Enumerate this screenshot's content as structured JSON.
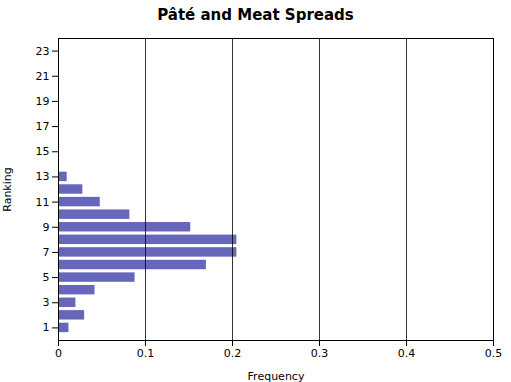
{
  "chart_data": {
    "type": "bar",
    "orientation": "horizontal",
    "title": "Pâté and Meat Spreads",
    "xlabel": "Frequency",
    "ylabel": "Ranking",
    "categories": [
      1,
      2,
      3,
      4,
      5,
      6,
      7,
      8,
      9,
      10,
      11,
      12,
      13,
      14,
      15,
      16,
      17,
      18,
      19,
      20,
      21,
      22,
      23
    ],
    "values": [
      0.012,
      0.03,
      0.02,
      0.042,
      0.088,
      0.17,
      0.205,
      0.205,
      0.152,
      0.082,
      0.048,
      0.028,
      0.01,
      0.0,
      0.0,
      0.0,
      0.0,
      0.0,
      0.0,
      0.0,
      0.0,
      0.0,
      0.0
    ],
    "color": "#6666bb",
    "xlim": [
      0,
      0.5
    ],
    "xticks": [
      0,
      0.1,
      0.2,
      0.3,
      0.4,
      0.5
    ],
    "ylim": [
      0,
      24
    ],
    "yticks": [
      1,
      3,
      5,
      7,
      9,
      11,
      13,
      15,
      17,
      19,
      21,
      23
    ],
    "grid": true
  }
}
